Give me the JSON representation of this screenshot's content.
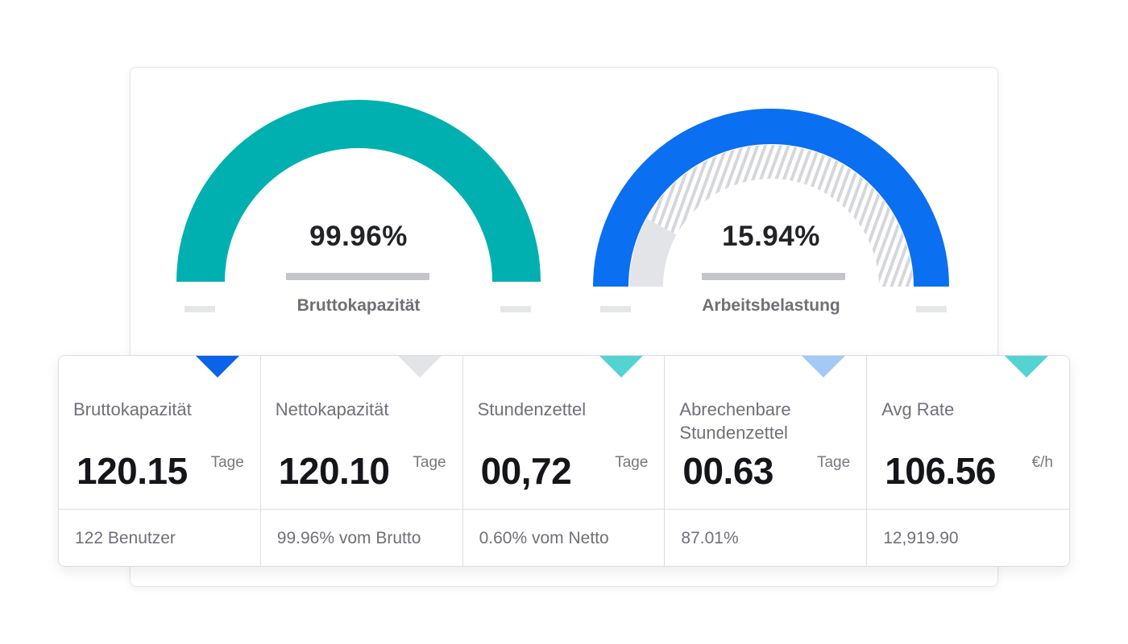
{
  "gauges": [
    {
      "value_text": "99.96%",
      "label": "Bruttokapazität",
      "color": "#00b0b0",
      "level": 0.9996
    },
    {
      "value_text": "15.94%",
      "label": "Arbeitsbelastung",
      "color": "#0a6ff0",
      "level": 0.1594,
      "track_color": "#e3e4e7",
      "hatch_color": "#d6d7db"
    }
  ],
  "stats": [
    {
      "title": "Bruttokapazität",
      "value": "120.15",
      "unit": "Tage",
      "footer": "122 Benutzer",
      "marker_color": "#0a63e8"
    },
    {
      "title": "Nettokapazität",
      "value": "120.10",
      "unit": "Tage",
      "footer": "99.96% vom Brutto",
      "marker_color": "#e3e4e7"
    },
    {
      "title": "Stundenzettel",
      "value": "00,72",
      "unit": "Tage",
      "footer": "0.60% vom Netto",
      "marker_color": "#55d3d3"
    },
    {
      "title": "Abrechenbare Stundenzettel",
      "value": "00.63",
      "unit": "Tage",
      "footer": "87.01%",
      "marker_color": "#a3c9f7"
    },
    {
      "title": "Avg Rate",
      "value": "106.56",
      "unit": "€/h",
      "footer": "12,919.90",
      "marker_color": "#55d3d3"
    }
  ]
}
